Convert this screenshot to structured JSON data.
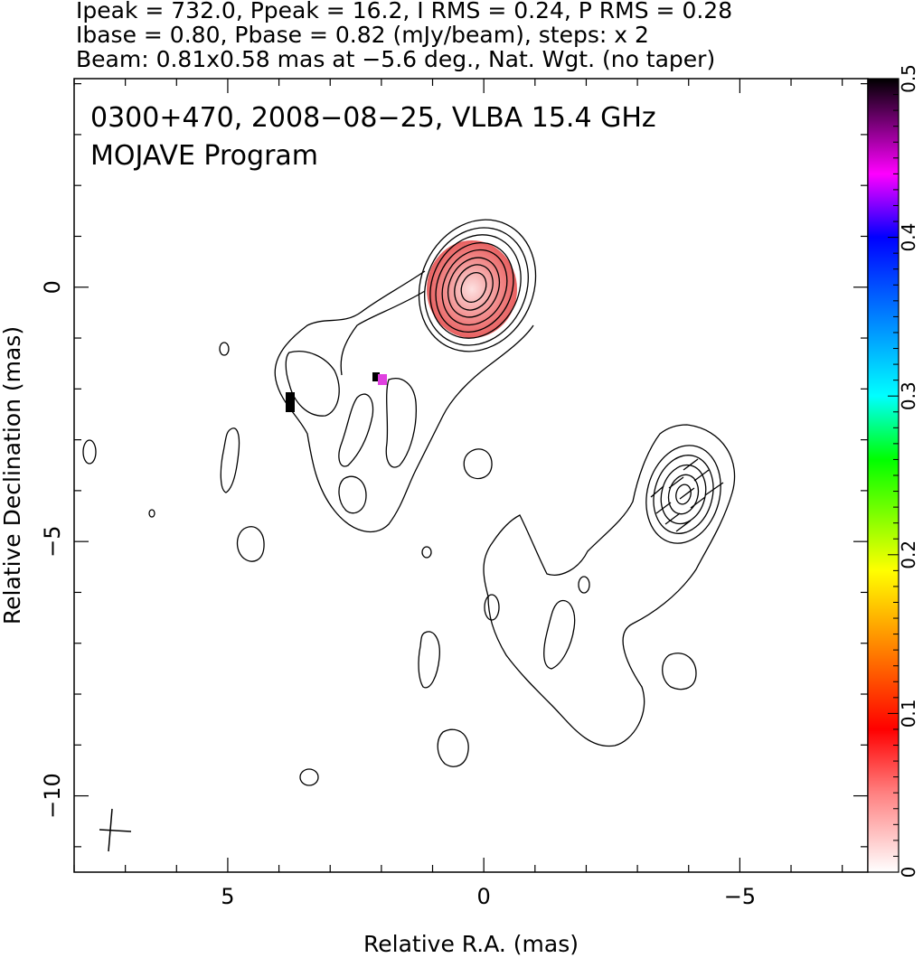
{
  "header": {
    "line1": "Ipeak = 732.0, Ppeak = 16.2, I RMS = 0.24, P RMS = 0.28",
    "line2": "Ibase = 0.80, Pbase = 0.82 (mJy/beam), steps: x 2",
    "line3": "Beam: 0.81x0.58 mas at −5.6 deg., Nat. Wgt. (no taper)"
  },
  "chart_data": {
    "type": "heatmap",
    "title": "0300+470, 2008−08−25, VLBA 15.4 GHz",
    "subtitle": "MOJAVE Program",
    "xlabel": "Relative R.A. (mas)",
    "ylabel": "Relative Declination (mas)",
    "xlim": [
      8.0,
      -7.5
    ],
    "ylim": [
      -11.5,
      4.1
    ],
    "x_ticks": [
      {
        "value": 5,
        "label": "5"
      },
      {
        "value": 0,
        "label": "0"
      },
      {
        "value": -5,
        "label": "−5"
      }
    ],
    "y_ticks": [
      {
        "value": 0,
        "label": "0"
      },
      {
        "value": -5,
        "label": "−5"
      },
      {
        "value": -10,
        "label": "−10"
      }
    ],
    "grid": false,
    "colorbar": {
      "range": [
        0,
        0.5
      ],
      "ticks": [
        {
          "value": 0,
          "label": "0"
        },
        {
          "value": 0.1,
          "label": "0.1"
        },
        {
          "value": 0.2,
          "label": "0.2"
        },
        {
          "value": 0.3,
          "label": "0.3"
        },
        {
          "value": 0.4,
          "label": "0.4"
        },
        {
          "value": 0.5,
          "label": "0.5"
        }
      ]
    },
    "contour_base_mJy_per_beam": 0.8,
    "contour_step_factor": 2,
    "core": {
      "ra": 0.0,
      "dec": 0.0,
      "contour_levels": 10
    },
    "jet_component": {
      "ra": -3.8,
      "dec": -4.3
    },
    "beam": {
      "major_mas": 0.81,
      "minor_mas": 0.58,
      "pa_deg": -5.6,
      "ra": 7.4,
      "dec": -10.8
    }
  }
}
